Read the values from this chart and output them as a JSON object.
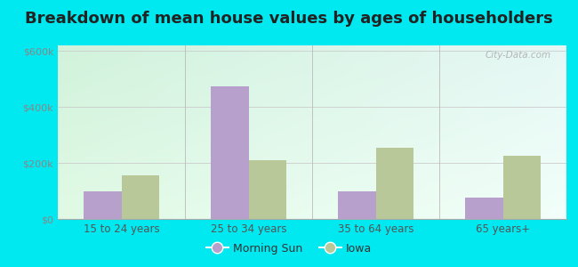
{
  "title": "Breakdown of mean house values by ages of householders",
  "categories": [
    "15 to 24 years",
    "25 to 34 years",
    "35 to 64 years",
    "65 years+"
  ],
  "morning_sun_values": [
    100000,
    475000,
    100000,
    75000
  ],
  "iowa_values": [
    155000,
    210000,
    255000,
    225000
  ],
  "morning_sun_color": "#b8a0cc",
  "iowa_color": "#b8c898",
  "ylim": [
    0,
    620000
  ],
  "yticks": [
    0,
    200000,
    400000,
    600000
  ],
  "ytick_labels": [
    "$0",
    "$200k",
    "$400k",
    "$600k"
  ],
  "outer_bg": "#00e8f0",
  "plot_bg_topleft": [
    0.82,
    0.95,
    0.86
  ],
  "plot_bg_topright": [
    0.9,
    0.97,
    0.96
  ],
  "plot_bg_botleft": [
    0.88,
    0.98,
    0.9
  ],
  "plot_bg_botright": [
    0.95,
    1.0,
    0.98
  ],
  "title_fontsize": 13,
  "legend_morning_sun": "Morning Sun",
  "legend_iowa": "Iowa",
  "watermark": "City-Data.com",
  "bar_width": 0.3
}
